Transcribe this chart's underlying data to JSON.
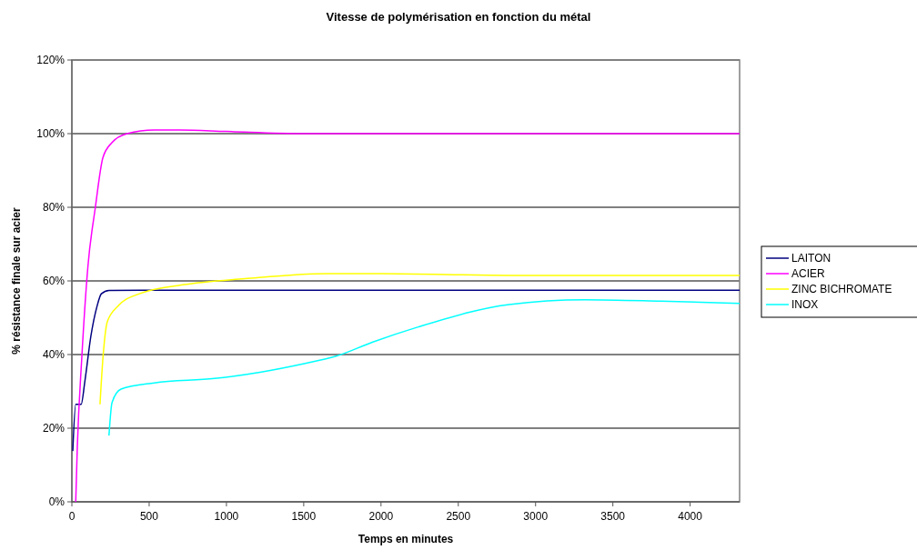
{
  "chart_data": {
    "type": "line",
    "title": "Vitesse de polymérisation en fonction du métal",
    "xlabel": "Temps en minutes",
    "ylabel": "% résistance finale sur acier",
    "xlim": [
      0,
      4320
    ],
    "xticks": [
      0,
      500,
      1000,
      1500,
      2000,
      2500,
      3000,
      3500,
      4000
    ],
    "ylim": [
      0,
      120
    ],
    "yticks": [
      {
        "value": 0,
        "label": "0%"
      },
      {
        "value": 20,
        "label": "20%"
      },
      {
        "value": 40,
        "label": "40%"
      },
      {
        "value": 60,
        "label": "60%"
      },
      {
        "value": 80,
        "label": "80%"
      },
      {
        "value": 100,
        "label": "100%"
      },
      {
        "value": 120,
        "label": "120%"
      }
    ],
    "grid": "y",
    "legend": "right",
    "marker": "none",
    "line_style": "solid",
    "series": [
      {
        "name": "LAITON",
        "color": "#000080",
        "x": [
          6,
          25,
          60,
          84,
          123,
          162,
          191,
          240,
          533,
          1000,
          2000,
          3000,
          4320
        ],
        "values": [
          13.8,
          26.5,
          26.5,
          32.7,
          45,
          53,
          56.5,
          57.4,
          57.5,
          57.5,
          57.5,
          57.5,
          57.5
        ]
      },
      {
        "name": "ACIER",
        "color": "#ff00ff",
        "x": [
          25,
          35,
          64,
          104,
          152,
          201,
          260,
          357,
          533,
          700,
          1000,
          1500,
          2500,
          4320
        ],
        "values": [
          0,
          14.6,
          39,
          64,
          80,
          93.5,
          97.6,
          100,
          101,
          101,
          100.6,
          100,
          100,
          100
        ]
      },
      {
        "name": "ZINC BICHROMATE",
        "color": "#ffff00",
        "x": [
          182,
          201,
          230,
          299,
          436,
          729,
          1119,
          1653,
          2000,
          2829,
          4320
        ],
        "values": [
          26.5,
          39,
          49,
          53.2,
          56.5,
          59,
          60.6,
          62,
          62,
          61.5,
          61.5
        ]
      },
      {
        "name": "INOX",
        "color": "#00ffff",
        "x": [
          240,
          260,
          318,
          533,
          924,
          1217,
          1510,
          1705,
          1947,
          2241,
          2829,
          3318,
          3812,
          4320
        ],
        "values": [
          18,
          27,
          30.6,
          32.3,
          33.5,
          35.2,
          37.6,
          39.5,
          43.4,
          47.5,
          53.6,
          54.9,
          54.5,
          53.9
        ]
      }
    ]
  }
}
